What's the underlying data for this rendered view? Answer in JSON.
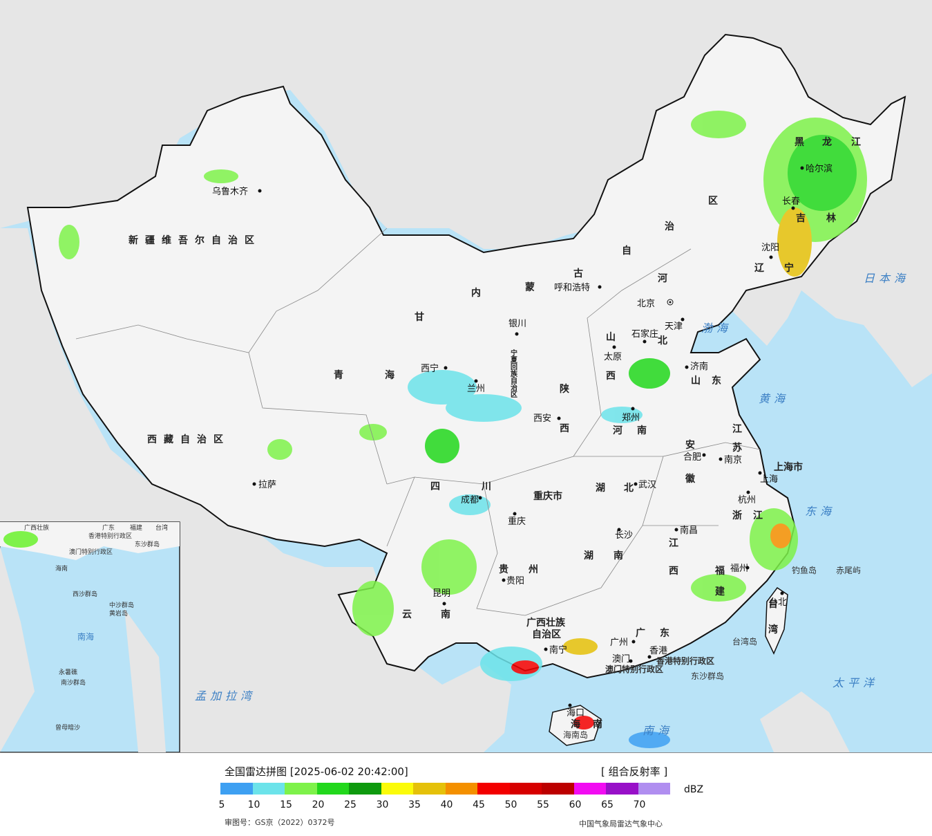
{
  "legend": {
    "title": "全国雷达拼图 [2025-06-02 20:42:00]",
    "product": "[ 组合反射率 ]",
    "unit": "dBZ",
    "ticks": [
      "5",
      "10",
      "15",
      "20",
      "25",
      "30",
      "35",
      "40",
      "45",
      "50",
      "55",
      "60",
      "65",
      "70"
    ],
    "colors": [
      "#3ea0f2",
      "#6ce3ea",
      "#7ef24a",
      "#22d81c",
      "#0e9a0e",
      "#fbfb0a",
      "#e5c10a",
      "#f49000",
      "#f30000",
      "#d70000",
      "#bc0000",
      "#f20cf2",
      "#9810c8",
      "#b08ef0"
    ],
    "review_no": "审图号：GS京（2022）0372号",
    "agency": "中国气象局雷达气象中心"
  },
  "provinces": [
    "新疆维吾尔自治区",
    "西藏自治区",
    "青",
    "海",
    "甘",
    "内",
    "蒙",
    "古",
    "自",
    "治",
    "区",
    "黑",
    "龙",
    "江",
    "吉",
    "林",
    "辽",
    "宁",
    "河",
    "北",
    "山",
    "西",
    "陕",
    "西",
    "四",
    "川",
    "重庆市",
    "云",
    "南",
    "贵",
    "州",
    "湖",
    "北",
    "湖",
    "南",
    "广西壮族",
    "自治区",
    "广",
    "东",
    "江",
    "西",
    "福",
    "建",
    "浙",
    "江",
    "安",
    "徽",
    "江",
    "苏",
    "山",
    "东",
    "上海市",
    "河",
    "南",
    "宁夏回族自治区",
    "海",
    "南",
    "台",
    "湾"
  ],
  "cities": [
    "乌鲁木齐",
    "拉萨",
    "西宁",
    "兰州",
    "银川",
    "呼和浩特",
    "北京",
    "天津",
    "石家庄",
    "太原",
    "济南",
    "郑州",
    "西安",
    "成都",
    "重庆",
    "昆明",
    "贵阳",
    "长沙",
    "武汉",
    "合肥",
    "南京",
    "上海",
    "杭州",
    "南昌",
    "福州",
    "台北",
    "广州",
    "香港",
    "澳门",
    "南宁",
    "海口",
    "沈阳",
    "长春",
    "哈尔滨"
  ],
  "seas": [
    "日本海",
    "渤海",
    "黄海",
    "东海",
    "太平洋",
    "南海",
    "孟加拉湾"
  ],
  "islands": [
    "钓鱼岛",
    "赤尾屿",
    "台湾岛",
    "东沙群岛",
    "海南岛",
    "香港特别行政区",
    "澳门特别行政区"
  ],
  "inset": [
    "广西壮族",
    "广东",
    "福建",
    "台湾",
    "香港特别行政区",
    "澳门特别行政区",
    "东沙群岛",
    "海南",
    "西沙群岛",
    "中沙群岛",
    "黄岩岛",
    "南海",
    "永暑礁",
    "南沙群岛",
    "曾母暗沙"
  ]
}
